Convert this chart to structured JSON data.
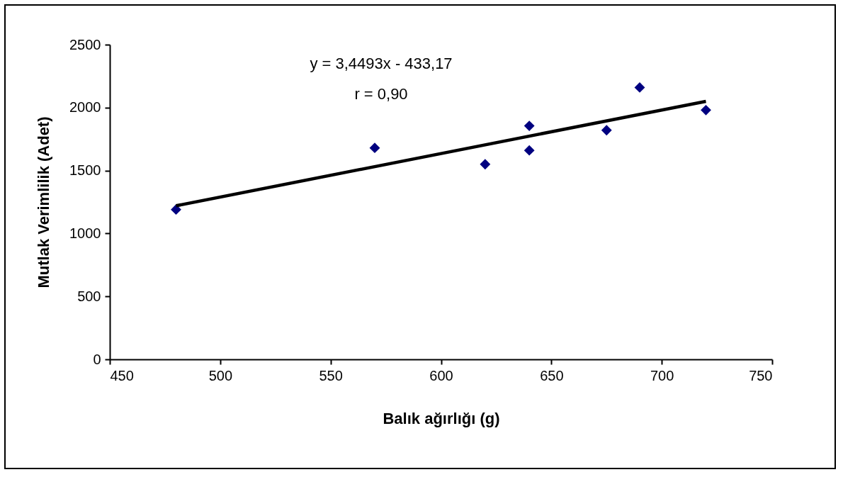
{
  "chart_data": {
    "type": "scatter",
    "xlabel": "Balık ağırlığı (g)",
    "ylabel": "Mutlak Verimlilik (Adet)",
    "annotations": [
      "y = 3,4493x - 433,17",
      "r = 0,90"
    ],
    "xlim": [
      450,
      750
    ],
    "xticks": [
      450,
      500,
      550,
      600,
      650,
      700,
      750
    ],
    "ylim": [
      0,
      2500
    ],
    "yticks": [
      0,
      500,
      1000,
      1500,
      2000,
      2500
    ],
    "grid": false,
    "marker": "diamond",
    "series": [
      {
        "color": "#000080",
        "x": [
          480,
          570,
          620,
          640,
          640,
          675,
          690,
          720
        ],
        "values": [
          1190,
          1680,
          1550,
          1855,
          1660,
          1820,
          2160,
          1980
        ]
      },
      {
        "type": "line",
        "marker": "none",
        "color": "#000000",
        "x": [
          480,
          720
        ],
        "values": [
          1220,
          2050
        ]
      }
    ]
  }
}
